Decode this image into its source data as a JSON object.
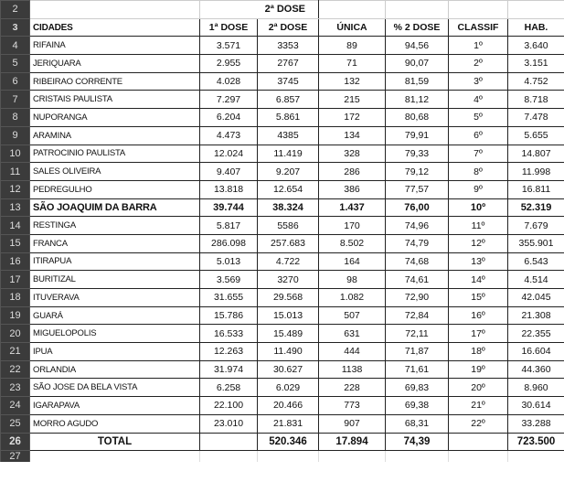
{
  "sheet": {
    "group_header": "2ª DOSE",
    "row_numbers": [
      "2",
      "3",
      "4",
      "5",
      "6",
      "7",
      "8",
      "9",
      "10",
      "11",
      "12",
      "13",
      "14",
      "15",
      "16",
      "17",
      "18",
      "19",
      "20",
      "21",
      "22",
      "23",
      "24",
      "25",
      "26",
      "27"
    ],
    "columns": [
      "CIDADES",
      "1ª DOSE",
      "2ª DOSE",
      "ÚNICA",
      "% 2 DOSE",
      "CLASSIF",
      "HAB."
    ],
    "rows": [
      [
        "RIFAINA",
        "3.571",
        "3353",
        "89",
        "94,56",
        "1º",
        "3.640"
      ],
      [
        "JERIQUARA",
        "2.955",
        "2767",
        "71",
        "90,07",
        "2º",
        "3.151"
      ],
      [
        "RIBEIRAO CORRENTE",
        "4.028",
        "3745",
        "132",
        "81,59",
        "3º",
        "4.752"
      ],
      [
        "CRISTAIS PAULISTA",
        "7.297",
        "6.857",
        "215",
        "81,12",
        "4º",
        "8.718"
      ],
      [
        "NUPORANGA",
        "6.204",
        "5.861",
        "172",
        "80,68",
        "5º",
        "7.478"
      ],
      [
        "ARAMINA",
        "4.473",
        "4385",
        "134",
        "79,91",
        "6º",
        "5.655"
      ],
      [
        "PATROCINIO PAULISTA",
        "12.024",
        "11.419",
        "328",
        "79,33",
        "7º",
        "14.807"
      ],
      [
        "SALES OLIVEIRA",
        "9.407",
        "9.207",
        "286",
        "79,12",
        "8º",
        "11.998"
      ],
      [
        "PEDREGULHO",
        "13.818",
        "12.654",
        "386",
        "77,57",
        "9º",
        "16.811"
      ],
      [
        "SÃO JOAQUIM DA BARRA",
        "39.744",
        "38.324",
        "1.437",
        "76,00",
        "10º",
        "52.319"
      ],
      [
        "RESTINGA",
        "5.817",
        "5586",
        "170",
        "74,96",
        "11º",
        "7.679"
      ],
      [
        "FRANCA",
        "286.098",
        "257.683",
        "8.502",
        "74,79",
        "12º",
        "355.901"
      ],
      [
        "ITIRAPUA",
        "5.013",
        "4.722",
        "164",
        "74,68",
        "13º",
        "6.543"
      ],
      [
        "BURITIZAL",
        "3.569",
        "3270",
        "98",
        "74,61",
        "14º",
        "4.514"
      ],
      [
        "ITUVERAVA",
        "31.655",
        "29.568",
        "1.082",
        "72,90",
        "15º",
        "42.045"
      ],
      [
        "GUARÁ",
        "15.786",
        "15.013",
        "507",
        "72,84",
        "16º",
        "21.308"
      ],
      [
        "MIGUELOPOLIS",
        "16.533",
        "15.489",
        "631",
        "72,11",
        "17º",
        "22.355"
      ],
      [
        "IPUA",
        "12.263",
        "11.490",
        "444",
        "71,87",
        "18º",
        "16.604"
      ],
      [
        "ORLANDIA",
        "31.974",
        "30.627",
        "1138",
        "71,61",
        "19º",
        "44.360"
      ],
      [
        "SÃO JOSE DA BELA VISTA",
        "6.258",
        "6.029",
        "228",
        "69,83",
        "20º",
        "8.960"
      ],
      [
        "IGARAPAVA",
        "22.100",
        "20.466",
        "773",
        "69,38",
        "21º",
        "30.614"
      ],
      [
        "MORRO AGUDO",
        "23.010",
        "21.831",
        "907",
        "68,31",
        "22º",
        "33.288"
      ]
    ],
    "highlighted_row": 9,
    "total": [
      "TOTAL",
      "",
      "520.346",
      "17.894",
      "74,39",
      "",
      "723.500"
    ]
  }
}
